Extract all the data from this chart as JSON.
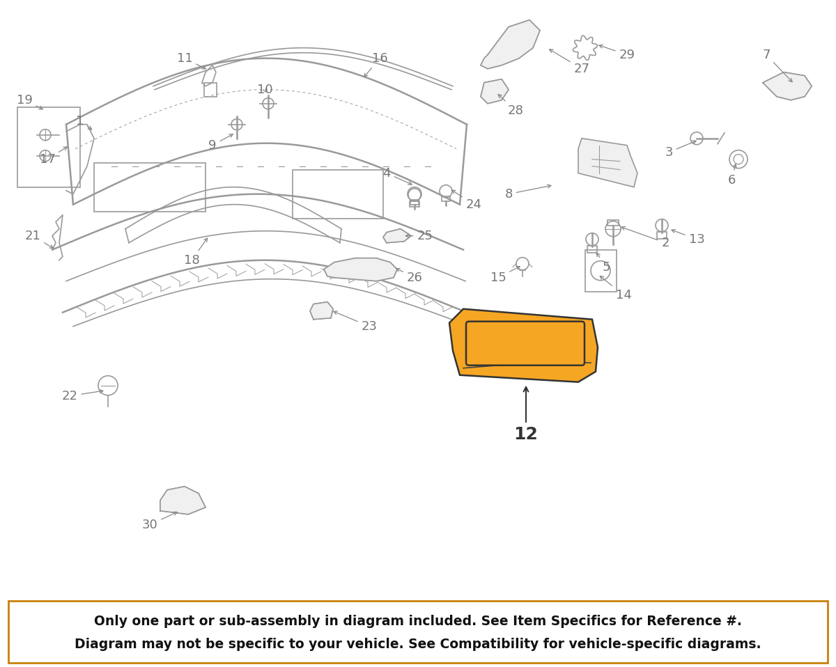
{
  "background_color": "#ffffff",
  "footer_bg": "#f5a623",
  "footer_text_color": "#000000",
  "footer_line1": "Only one part or sub-assembly in diagram included. See Item Specifics for Reference #.",
  "footer_line2": "Diagram may not be specific to your vehicle. See Compatibility for vehicle-specific diagrams.",
  "highlight_color": "#f5a623",
  "line_color": "#999999",
  "dark_line_color": "#555555",
  "text_color": "#888888",
  "label_color": "#777777",
  "fig_width": 12.0,
  "fig_height": 9.58,
  "dpi": 100
}
